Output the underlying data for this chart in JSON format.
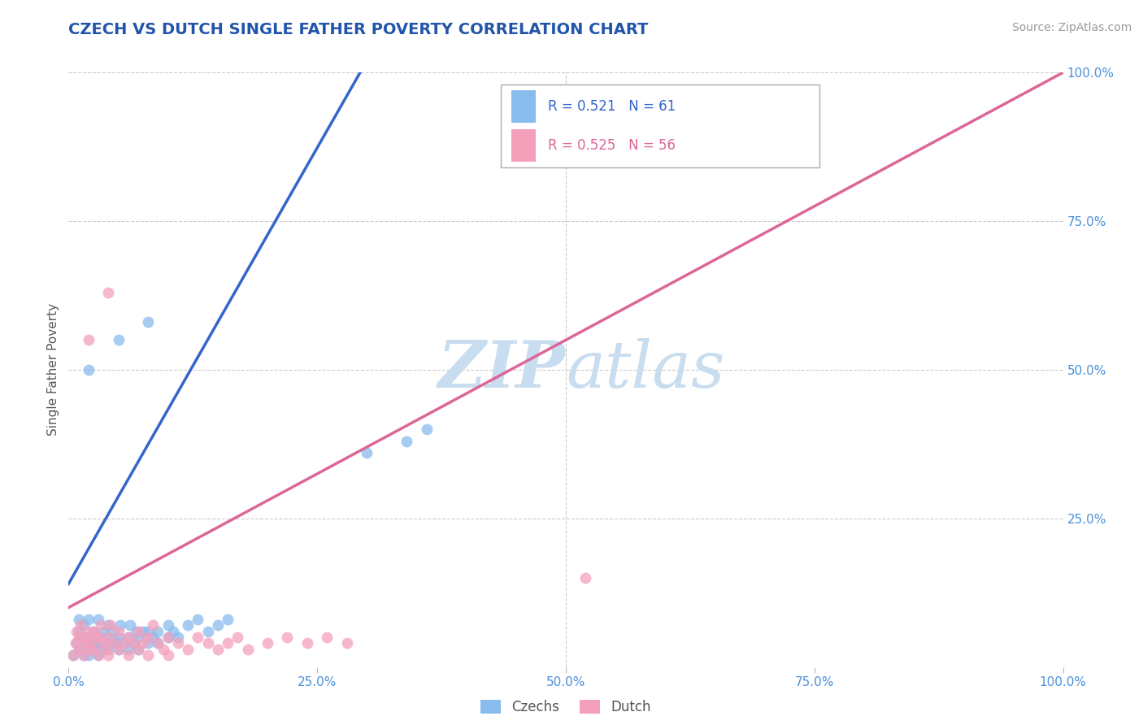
{
  "title": "CZECH VS DUTCH SINGLE FATHER POVERTY CORRELATION CHART",
  "source": "Source: ZipAtlas.com",
  "ylabel": "Single Father Poverty",
  "watermark": "ZIPatlas",
  "czech_R": 0.521,
  "czech_N": 61,
  "dutch_R": 0.525,
  "dutch_N": 56,
  "title_color": "#2255aa",
  "source_color": "#999999",
  "axis_label_color": "#555555",
  "tick_color": "#4a90d9",
  "czech_color": "#88bbee",
  "dutch_color": "#f4a0bb",
  "czech_line_color": "#3366cc",
  "dutch_line_color": "#dd6699",
  "grid_color": "#cccccc",
  "watermark_color": "#c8ddf0",
  "background_color": "#ffffff",
  "xlim": [
    0,
    1
  ],
  "ylim": [
    0,
    1
  ],
  "xticks": [
    0,
    0.25,
    0.5,
    0.75,
    1.0
  ],
  "xtick_labels": [
    "0.0%",
    "25.0%",
    "50.0%",
    "75.0%",
    "100.0%"
  ],
  "ytick_labels": [
    "25.0%",
    "50.0%",
    "75.0%",
    "100.0%"
  ],
  "ytick_positions": [
    0.25,
    0.5,
    0.75,
    1.0
  ],
  "czech_scatter_x": [
    0.005,
    0.008,
    0.01,
    0.01,
    0.01,
    0.012,
    0.015,
    0.015,
    0.015,
    0.018,
    0.02,
    0.02,
    0.02,
    0.022,
    0.025,
    0.025,
    0.028,
    0.03,
    0.03,
    0.03,
    0.032,
    0.035,
    0.035,
    0.04,
    0.04,
    0.04,
    0.042,
    0.045,
    0.048,
    0.05,
    0.05,
    0.052,
    0.055,
    0.06,
    0.06,
    0.062,
    0.065,
    0.068,
    0.07,
    0.07,
    0.075,
    0.08,
    0.08,
    0.085,
    0.09,
    0.09,
    0.1,
    0.1,
    0.105,
    0.11,
    0.12,
    0.13,
    0.14,
    0.15,
    0.16,
    0.3,
    0.34,
    0.36,
    0.02,
    0.05,
    0.08
  ],
  "czech_scatter_y": [
    0.02,
    0.04,
    0.03,
    0.06,
    0.08,
    0.05,
    0.02,
    0.04,
    0.07,
    0.03,
    0.02,
    0.05,
    0.08,
    0.04,
    0.03,
    0.06,
    0.04,
    0.02,
    0.05,
    0.08,
    0.04,
    0.03,
    0.06,
    0.03,
    0.05,
    0.07,
    0.04,
    0.06,
    0.04,
    0.03,
    0.05,
    0.07,
    0.04,
    0.03,
    0.05,
    0.07,
    0.04,
    0.06,
    0.03,
    0.05,
    0.06,
    0.04,
    0.06,
    0.05,
    0.04,
    0.06,
    0.05,
    0.07,
    0.06,
    0.05,
    0.07,
    0.08,
    0.06,
    0.07,
    0.08,
    0.36,
    0.38,
    0.4,
    0.5,
    0.55,
    0.58
  ],
  "dutch_scatter_x": [
    0.005,
    0.007,
    0.008,
    0.01,
    0.01,
    0.012,
    0.015,
    0.015,
    0.018,
    0.02,
    0.02,
    0.022,
    0.025,
    0.025,
    0.028,
    0.03,
    0.03,
    0.032,
    0.035,
    0.038,
    0.04,
    0.04,
    0.042,
    0.045,
    0.05,
    0.05,
    0.055,
    0.06,
    0.06,
    0.065,
    0.07,
    0.07,
    0.075,
    0.08,
    0.08,
    0.085,
    0.09,
    0.095,
    0.1,
    0.1,
    0.11,
    0.12,
    0.13,
    0.14,
    0.15,
    0.16,
    0.17,
    0.18,
    0.2,
    0.22,
    0.24,
    0.26,
    0.28,
    0.52,
    0.02,
    0.04
  ],
  "dutch_scatter_y": [
    0.02,
    0.04,
    0.06,
    0.03,
    0.05,
    0.07,
    0.02,
    0.05,
    0.04,
    0.03,
    0.06,
    0.04,
    0.03,
    0.06,
    0.05,
    0.02,
    0.05,
    0.07,
    0.04,
    0.03,
    0.02,
    0.05,
    0.07,
    0.04,
    0.03,
    0.06,
    0.04,
    0.02,
    0.05,
    0.04,
    0.03,
    0.06,
    0.04,
    0.02,
    0.05,
    0.07,
    0.04,
    0.03,
    0.02,
    0.05,
    0.04,
    0.03,
    0.05,
    0.04,
    0.03,
    0.04,
    0.05,
    0.03,
    0.04,
    0.05,
    0.04,
    0.05,
    0.04,
    0.15,
    0.55,
    0.63
  ],
  "czech_trendline_x": [
    0.0,
    0.3
  ],
  "czech_trendline_y": [
    0.14,
    1.02
  ],
  "dutch_trendline_x": [
    0.0,
    1.0
  ],
  "dutch_trendline_y": [
    0.1,
    1.0
  ]
}
